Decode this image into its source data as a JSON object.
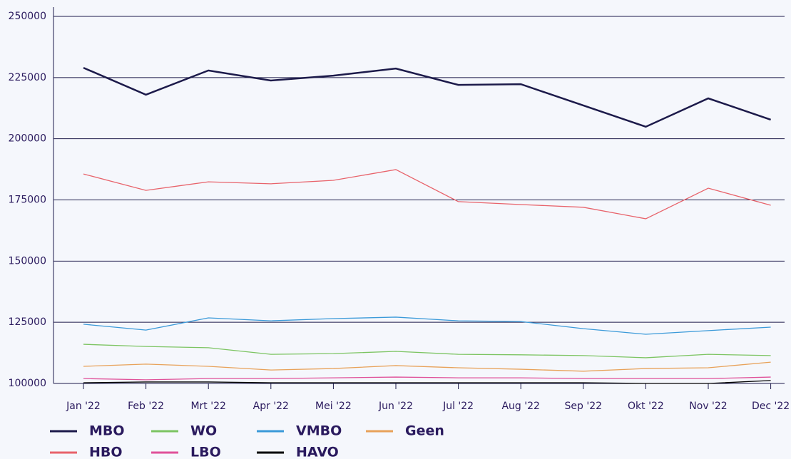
{
  "chart_data": {
    "type": "line",
    "categories": [
      "Jan '22",
      "Feb '22",
      "Mrt '22",
      "Apr '22",
      "Mei '22",
      "Jun '22",
      "Jul '22",
      "Aug '22",
      "Sep '22",
      "Okt '22",
      "Nov '22",
      "Dec '22"
    ],
    "series": [
      {
        "name": "MBO",
        "color": "#1c1a4a",
        "values": [
          229000,
          218000,
          227900,
          223800,
          225800,
          228700,
          222000,
          222300,
          213600,
          204900,
          216500,
          207800
        ]
      },
      {
        "name": "HBO",
        "color": "#e8636b",
        "values": [
          185600,
          178900,
          182400,
          181600,
          183000,
          187400,
          174300,
          173100,
          172000,
          167300,
          179800,
          172800
        ]
      },
      {
        "name": "WO",
        "color": "#7cc462",
        "values": [
          116000,
          115100,
          114600,
          111900,
          112200,
          113100,
          111900,
          111700,
          111400,
          110500,
          111900,
          111400
        ]
      },
      {
        "name": "LBO",
        "color": "#e0529a",
        "values": [
          102000,
          101500,
          102000,
          102000,
          102300,
          102600,
          102300,
          102300,
          102000,
          102000,
          102000,
          102600
        ]
      },
      {
        "name": "VMBO",
        "color": "#3b9ad9",
        "values": [
          124200,
          121800,
          126800,
          125600,
          126500,
          127100,
          125600,
          125300,
          122400,
          120100,
          121600,
          123000
        ]
      },
      {
        "name": "HAVO",
        "color": "#000000",
        "values": [
          100300,
          100600,
          100600,
          100300,
          100300,
          100300,
          100300,
          100300,
          100300,
          100000,
          100000,
          101200
        ]
      },
      {
        "name": "Geen",
        "color": "#e8a25a",
        "values": [
          107000,
          107900,
          107000,
          105500,
          106100,
          107300,
          106400,
          105800,
          105000,
          106100,
          106400,
          108700
        ]
      }
    ],
    "ylim": [
      100000,
      250000
    ],
    "yticks": [
      100000,
      125000,
      150000,
      175000,
      200000,
      225000,
      250000
    ],
    "grid": true
  }
}
